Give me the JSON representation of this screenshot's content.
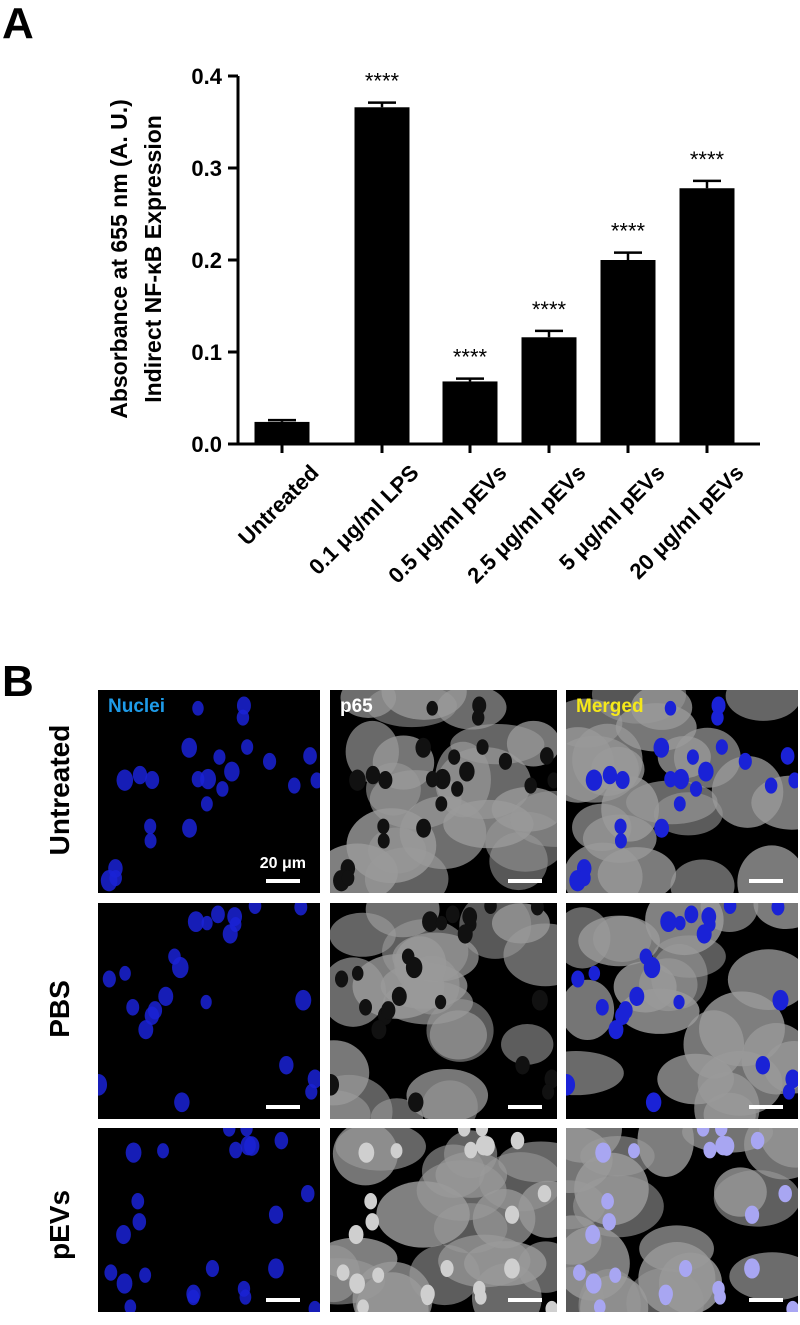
{
  "panel_a_letter": "A",
  "panel_b_letter": "B",
  "chart_data": {
    "type": "bar",
    "categories": [
      "Untreated",
      "0.1 μg/ml LPS",
      "0.5 μg/ml pEVs",
      "2.5 μg/ml pEVs",
      "5 μg/ml pEVs",
      "20 μg/ml pEVs"
    ],
    "values": [
      0.024,
      0.366,
      0.068,
      0.116,
      0.2,
      0.278
    ],
    "errors": [
      0.002,
      0.005,
      0.003,
      0.007,
      0.008,
      0.008
    ],
    "significance": [
      "",
      "****",
      "****",
      "****",
      "****",
      "****"
    ],
    "ylabel_line1": "Absorbance at 655 nm (A. U.)",
    "ylabel_line2": "Indirect NF-κB Expression",
    "xlabel": "",
    "ylim": [
      0,
      0.4
    ],
    "yticks": [
      "0.0",
      "0.1",
      "0.2",
      "0.3",
      "0.4"
    ],
    "bar_color": "#000000",
    "grid": false
  },
  "panel_b": {
    "channels": [
      {
        "label": "Nuclei",
        "color": "#1e9be8"
      },
      {
        "label": "p65",
        "color": "#ffffff"
      },
      {
        "label": "Merged",
        "color": "#f5e81a"
      }
    ],
    "rows": [
      "Untreated",
      "PBS",
      "pEVs"
    ],
    "scale_bar_text": "20 μm",
    "nuclei_color": "#1a22d6",
    "cytoplasm_color": "#9a9a9a"
  }
}
